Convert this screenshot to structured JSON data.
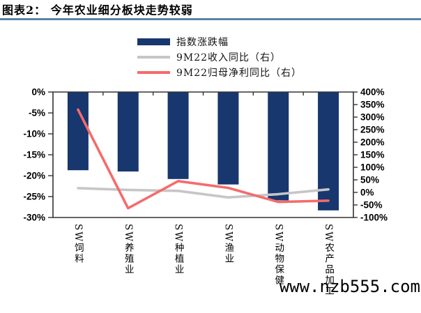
{
  "header": {
    "title": "图表2：  今年农业细分板块走势较弱"
  },
  "watermark": "www.nzb555.com",
  "colors": {
    "bar": "#17376e",
    "revenue_line": "#c6c6c6",
    "profit_line": "#f56b6b",
    "title_rule": "#5d83a4",
    "axis": "#333333"
  },
  "chart_data": {
    "type": "bar",
    "subtype": "combo-bar-line",
    "categories": [
      "SW饲料",
      "SW养殖业",
      "SW种植业",
      "SW渔业",
      "SW动物保健",
      "SW农产品加工"
    ],
    "series": [
      {
        "name": "指数涨跌幅",
        "type": "bar",
        "axis": "left",
        "color": "#17376e",
        "values": [
          -18.7,
          -19.0,
          -20.8,
          -22.1,
          -25.9,
          -28.3
        ]
      },
      {
        "name": "9M22收入同比（右）",
        "type": "line",
        "axis": "right",
        "color": "#c6c6c6",
        "values": [
          17,
          10,
          6,
          -20,
          -7,
          12
        ]
      },
      {
        "name": "9M22归母净利同比（右）",
        "type": "line",
        "axis": "right",
        "color": "#f56b6b",
        "values": [
          330,
          -63,
          45,
          18,
          -38,
          -33
        ]
      }
    ],
    "left_axis": {
      "ticks": [
        "0%",
        "-5%",
        "-10%",
        "-15%",
        "-20%",
        "-25%",
        "-30%"
      ],
      "min": -30,
      "max": 0
    },
    "right_axis": {
      "ticks": [
        "400%",
        "350%",
        "300%",
        "250%",
        "200%",
        "150%",
        "100%",
        "50%",
        "0%",
        "-50%",
        "-100%"
      ],
      "min": -100,
      "max": 400
    },
    "grid": "off",
    "legend_position": "top-center"
  }
}
